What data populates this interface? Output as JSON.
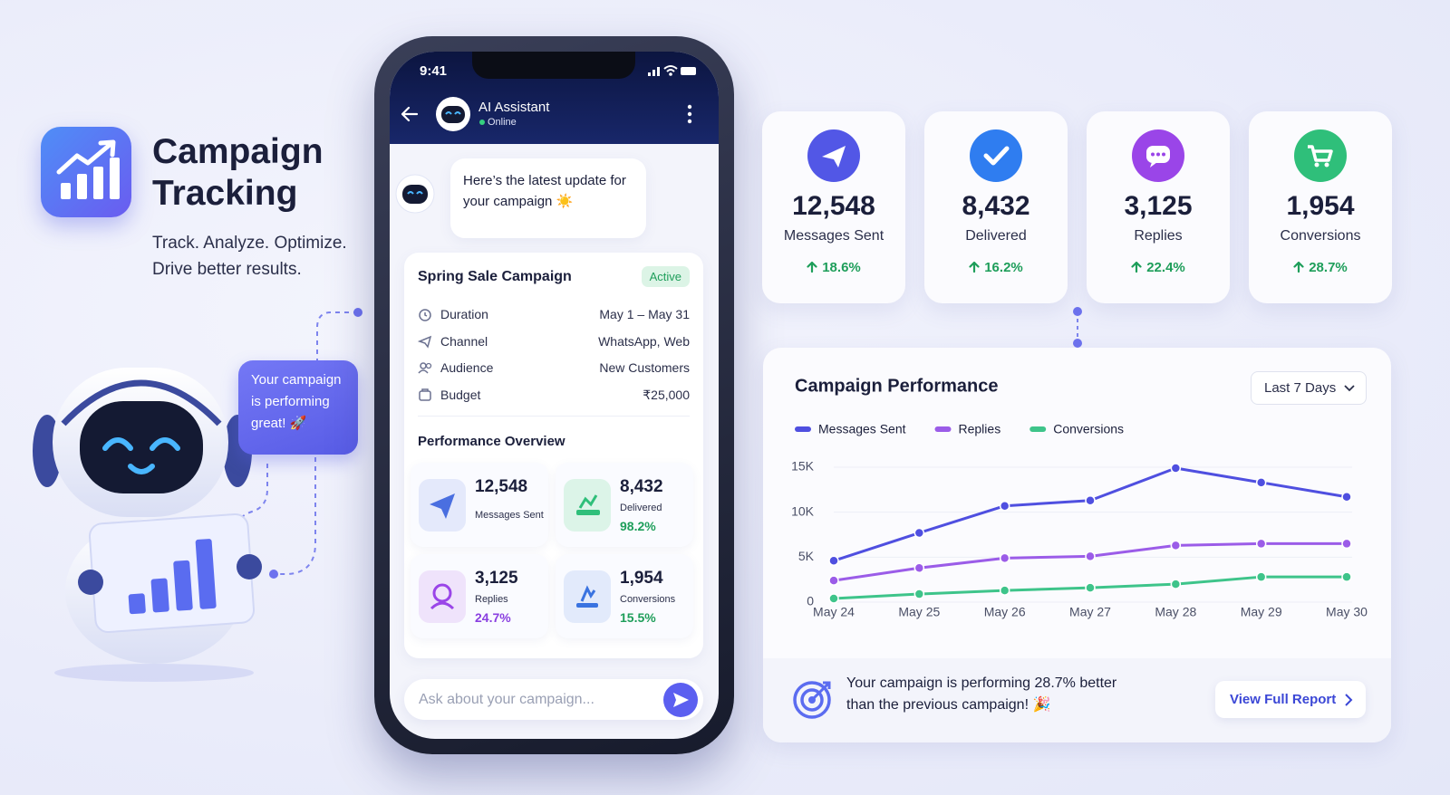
{
  "hero": {
    "title": "Campaign Tracking",
    "tagline": [
      "Track. Analyze. Optimize.",
      "Drive better results."
    ]
  },
  "robot_bubble": "Your campaign is performing great! 🚀",
  "phone": {
    "status_time": "9:41",
    "assistant_name": "AI Assistant",
    "assistant_status": "Online",
    "message": "Here’s the latest update for your campaign ☀️",
    "campaign": {
      "name": "Spring Sale Campaign",
      "status": "Active",
      "details": [
        {
          "label": "Duration",
          "value": "May 1 – May 31"
        },
        {
          "label": "Channel",
          "value": "WhatsApp, Web"
        },
        {
          "label": "Audience",
          "value": "New Customers"
        },
        {
          "label": "Budget",
          "value": "₹25,000"
        }
      ]
    },
    "overview": {
      "title": "Performance Overview",
      "tiles": [
        {
          "value": "12,548",
          "label": "Messages Sent"
        },
        {
          "value": "8,432",
          "label": "Delivered",
          "rate": "98.2%"
        },
        {
          "value": "3,125",
          "label": "Replies",
          "rate": "24.7%"
        },
        {
          "value": "1,954",
          "label": "Conversions",
          "rate": "15.5%"
        }
      ]
    },
    "input_placeholder": "Ask about your campaign..."
  },
  "stats": [
    {
      "value": "12,548",
      "label": "Messages Sent",
      "change": "18.6%"
    },
    {
      "value": "8,432",
      "label": "Delivered",
      "change": "16.2%"
    },
    {
      "value": "3,125",
      "label": "Replies",
      "change": "22.4%"
    },
    {
      "value": "1,954",
      "label": "Conversions",
      "change": "28.7%"
    }
  ],
  "chart_data": {
    "type": "line",
    "title": "Campaign Performance",
    "period": "Last 7 Days",
    "categories": [
      "May 24",
      "May 25",
      "May 26",
      "May 27",
      "May 28",
      "May 29",
      "May 30"
    ],
    "series": [
      {
        "name": "Messages Sent",
        "color": "#4f4fe0",
        "values": [
          4600,
          7700,
          10700,
          11300,
          14900,
          13300,
          11700
        ]
      },
      {
        "name": "Replies",
        "color": "#9b5ce8",
        "values": [
          2400,
          3800,
          4900,
          5100,
          6300,
          6500,
          6500
        ]
      },
      {
        "name": "Conversions",
        "color": "#3ec48a",
        "values": [
          400,
          900,
          1300,
          1600,
          2000,
          2800,
          2800
        ]
      }
    ],
    "ylim": [
      0,
      15000
    ],
    "yticks": [
      0,
      {
        "value": 5000,
        "label": "5K"
      },
      {
        "value": 10000,
        "label": "10K"
      },
      {
        "value": 15000,
        "label": "15K"
      }
    ],
    "grid": true
  },
  "insight": {
    "text": "Your campaign is performing 28.7% better than the previous campaign! 🎉",
    "button": "View Full Report"
  }
}
